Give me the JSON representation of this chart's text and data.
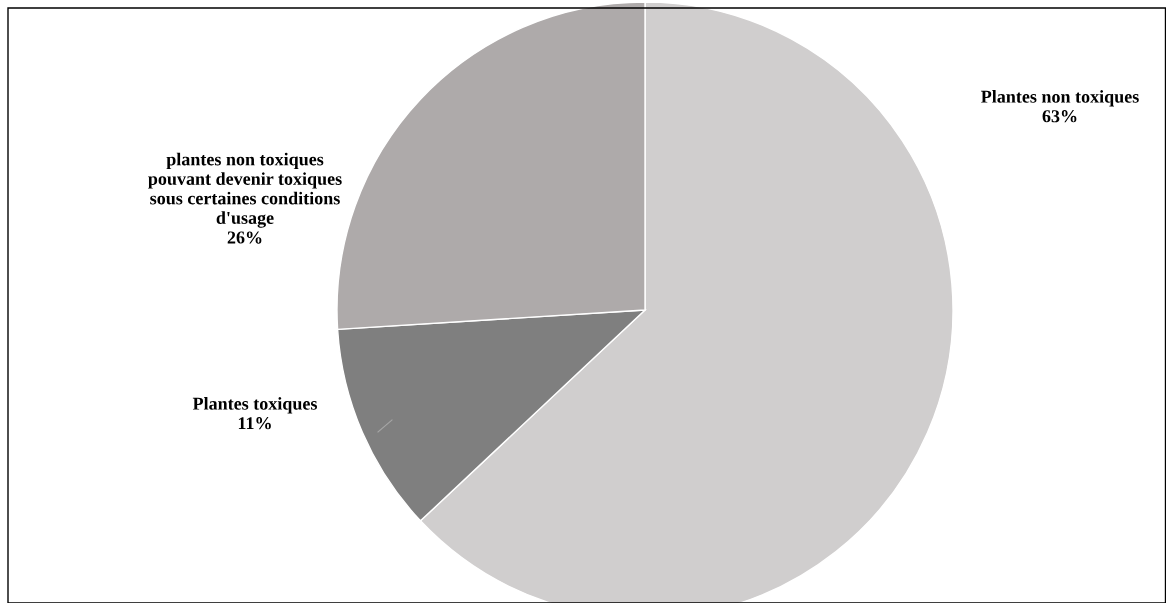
{
  "chart_data": {
    "type": "pie",
    "categories": [
      "Plantes non toxiques",
      "Plantes toxiques",
      "plantes non toxiques\npouvant devenir toxiques\nsous certaines conditions\nd'usage"
    ],
    "values": [
      63,
      11,
      26
    ],
    "value_labels": [
      "63%",
      "11%",
      "26%"
    ],
    "colors": [
      "#d0cece",
      "#7f7f7f",
      "#aeaaaa"
    ],
    "legend": false
  }
}
